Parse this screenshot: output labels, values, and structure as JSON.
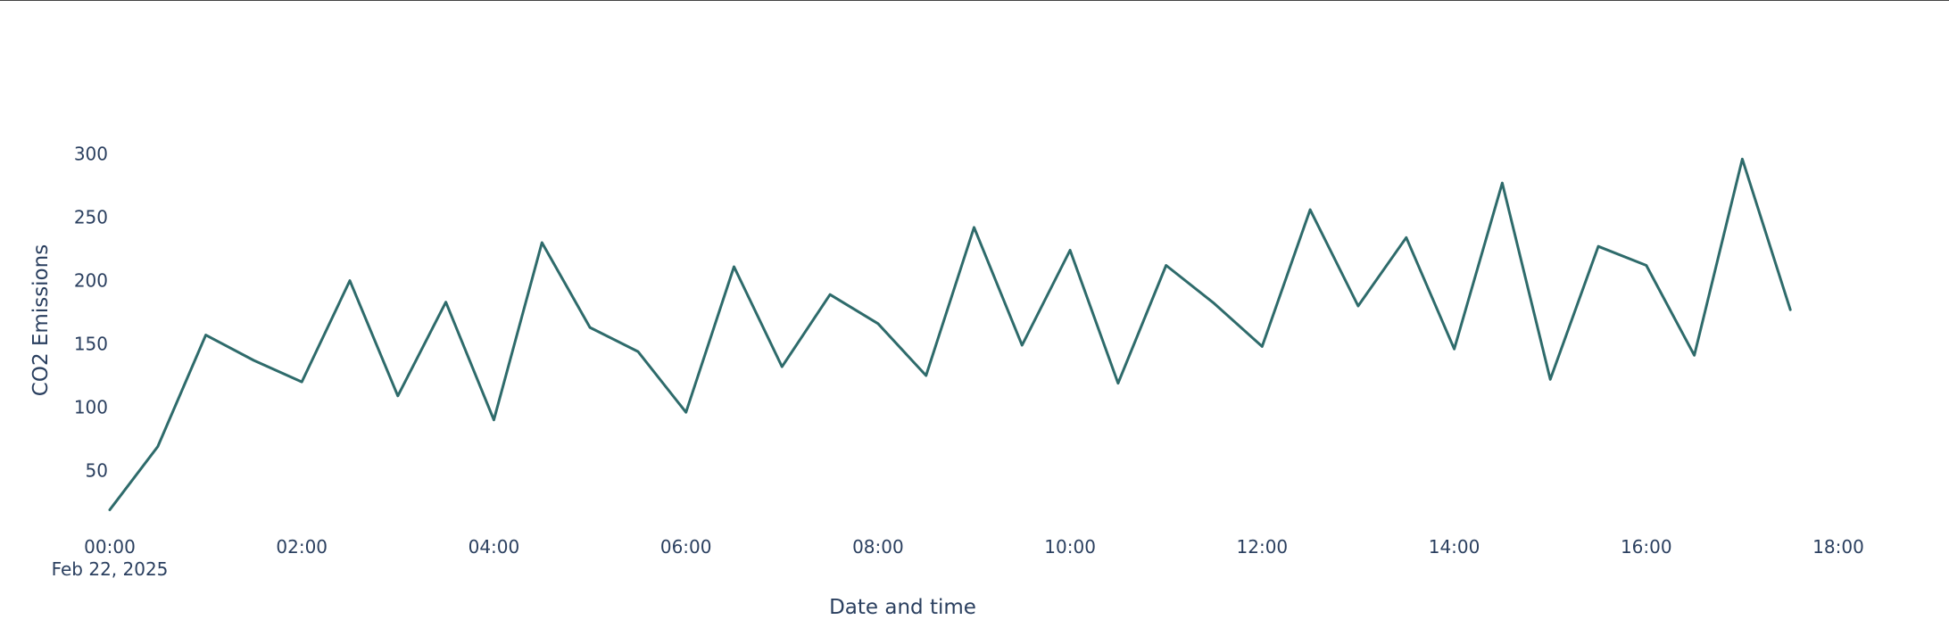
{
  "colors": {
    "line": "#2e6b6b",
    "text": "#2a3f5f",
    "border": "#444444",
    "background": "#ffffff"
  },
  "chart_data": {
    "type": "line",
    "title": "",
    "xlabel": "Date and time",
    "ylabel": "CO2 Emissions",
    "grid": false,
    "legend": "none",
    "x_axis": {
      "type": "date",
      "range": [
        "2025-02-22 00:00",
        "2025-02-22 18:00"
      ],
      "tick_values": [
        "2025-02-22 00:00",
        "2025-02-22 02:00",
        "2025-02-22 04:00",
        "2025-02-22 06:00",
        "2025-02-22 08:00",
        "2025-02-22 10:00",
        "2025-02-22 12:00",
        "2025-02-22 14:00",
        "2025-02-22 16:00",
        "2025-02-22 18:00"
      ],
      "tick_labels": [
        "00:00",
        "02:00",
        "04:00",
        "06:00",
        "08:00",
        "10:00",
        "12:00",
        "14:00",
        "16:00",
        "18:00"
      ],
      "date_label": "Feb 22, 2025"
    },
    "y_axis": {
      "range": [
        6,
        330
      ],
      "tick_values": [
        50,
        100,
        150,
        200,
        250,
        300
      ],
      "tick_labels": [
        "50",
        "100",
        "150",
        "200",
        "250",
        "300"
      ]
    },
    "series": [
      {
        "x": [
          "2025-02-22 00:00",
          "2025-02-22 00:30",
          "2025-02-22 01:00",
          "2025-02-22 01:30",
          "2025-02-22 02:00",
          "2025-02-22 02:30",
          "2025-02-22 03:00",
          "2025-02-22 03:30",
          "2025-02-22 04:00",
          "2025-02-22 04:30",
          "2025-02-22 05:00",
          "2025-02-22 05:30",
          "2025-02-22 06:00",
          "2025-02-22 06:30",
          "2025-02-22 07:00",
          "2025-02-22 07:30",
          "2025-02-22 08:00",
          "2025-02-22 08:30",
          "2025-02-22 09:00",
          "2025-02-22 09:30",
          "2025-02-22 10:00",
          "2025-02-22 10:30",
          "2025-02-22 11:00",
          "2025-02-22 11:30",
          "2025-02-22 12:00",
          "2025-02-22 12:30",
          "2025-02-22 13:00",
          "2025-02-22 13:30",
          "2025-02-22 14:00",
          "2025-02-22 14:30",
          "2025-02-22 15:00",
          "2025-02-22 15:30",
          "2025-02-22 16:00",
          "2025-02-22 16:30",
          "2025-02-22 17:00",
          "2025-02-22 17:30"
        ],
        "values": [
          19,
          69,
          157,
          137,
          120,
          200,
          109,
          183,
          90,
          230,
          163,
          144,
          96,
          211,
          132,
          189,
          166,
          125,
          242,
          149,
          224,
          119,
          212,
          182,
          148,
          256,
          180,
          234,
          146,
          277,
          122,
          227,
          212,
          141,
          296,
          177
        ]
      }
    ]
  }
}
